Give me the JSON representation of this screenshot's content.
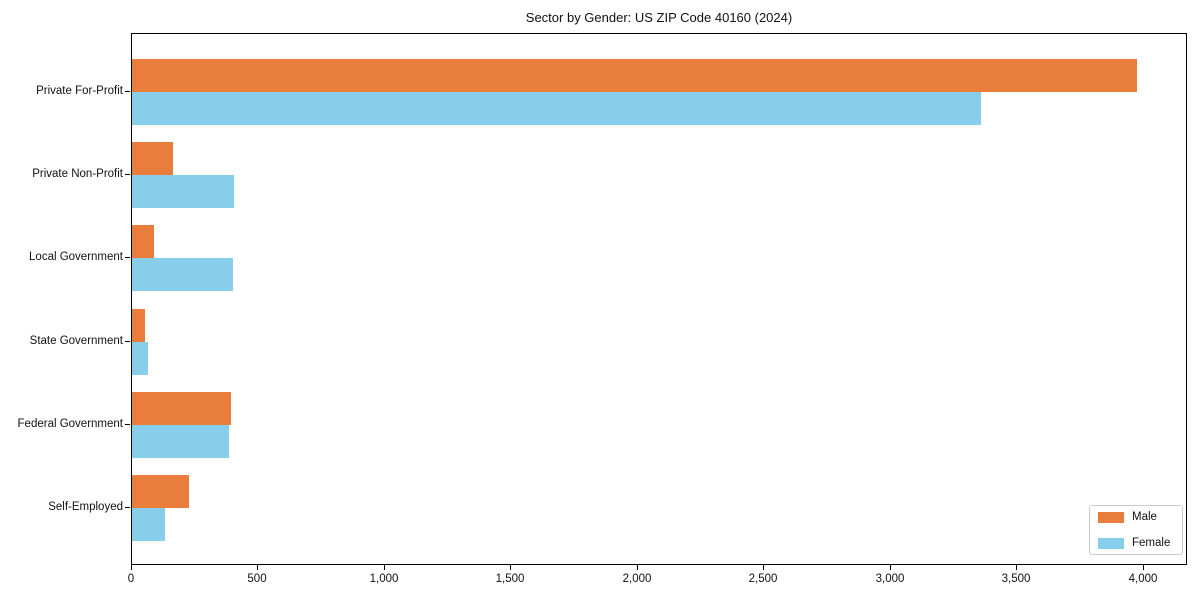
{
  "chart_data": {
    "type": "bar",
    "orientation": "horizontal",
    "title": "Sector by Gender: US ZIP Code 40160 (2024)",
    "categories": [
      "Private For-Profit",
      "Private Non-Profit",
      "Local Government",
      "State Government",
      "Federal Government",
      "Self-Employed"
    ],
    "series": [
      {
        "name": "Male",
        "color": "#E87D3C",
        "values": [
          3975,
          160,
          85,
          50,
          390,
          225
        ]
      },
      {
        "name": "Female",
        "color": "#87CEEB",
        "values": [
          3355,
          405,
          400,
          65,
          385,
          130
        ]
      }
    ],
    "xlabel": "",
    "ylabel": "",
    "xlim": [
      0,
      4175
    ],
    "xticks": [
      0,
      500,
      1000,
      1500,
      2000,
      2500,
      3000,
      3500,
      4000
    ],
    "xtick_labels": [
      "0",
      "500",
      "1,000",
      "1,500",
      "2,000",
      "2,500",
      "3,000",
      "3,500",
      "4,000"
    ],
    "grid": false,
    "plot_background": "#ffffff",
    "frame_color": "#000000",
    "legend": {
      "position": "lower right",
      "entries": [
        "Male",
        "Female"
      ]
    }
  }
}
